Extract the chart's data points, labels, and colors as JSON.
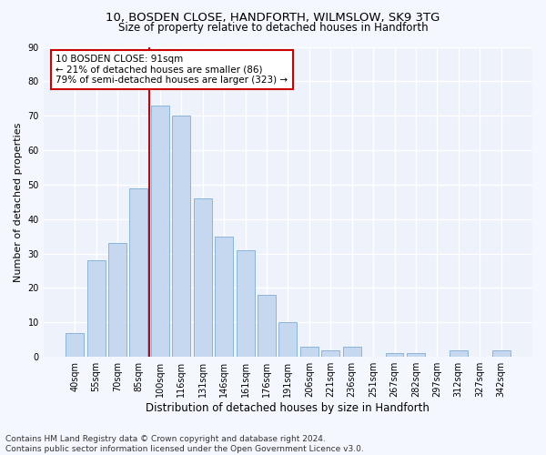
{
  "title1": "10, BOSDEN CLOSE, HANDFORTH, WILMSLOW, SK9 3TG",
  "title2": "Size of property relative to detached houses in Handforth",
  "xlabel": "Distribution of detached houses by size in Handforth",
  "ylabel": "Number of detached properties",
  "categories": [
    "40sqm",
    "55sqm",
    "70sqm",
    "85sqm",
    "100sqm",
    "116sqm",
    "131sqm",
    "146sqm",
    "161sqm",
    "176sqm",
    "191sqm",
    "206sqm",
    "221sqm",
    "236sqm",
    "251sqm",
    "267sqm",
    "282sqm",
    "297sqm",
    "312sqm",
    "327sqm",
    "342sqm"
  ],
  "values": [
    7,
    28,
    33,
    49,
    73,
    70,
    46,
    35,
    31,
    18,
    10,
    3,
    2,
    3,
    0,
    1,
    1,
    0,
    2,
    0,
    2
  ],
  "bar_color": "#c5d8ef",
  "bar_edge_color": "#8ab4d8",
  "property_line_color": "#cc0000",
  "annotation_text": "10 BOSDEN CLOSE: 91sqm\n← 21% of detached houses are smaller (86)\n79% of semi-detached houses are larger (323) →",
  "annotation_box_color": "#cc0000",
  "ylim": [
    0,
    90
  ],
  "yticks": [
    0,
    10,
    20,
    30,
    40,
    50,
    60,
    70,
    80,
    90
  ],
  "footer_line1": "Contains HM Land Registry data © Crown copyright and database right 2024.",
  "footer_line2": "Contains public sector information licensed under the Open Government Licence v3.0.",
  "bg_color": "#eef2fb",
  "grid_color": "#ffffff",
  "title1_fontsize": 9.5,
  "title2_fontsize": 8.5,
  "xlabel_fontsize": 8.5,
  "ylabel_fontsize": 8,
  "tick_fontsize": 7,
  "annotation_fontsize": 7.5,
  "footer_fontsize": 6.5
}
